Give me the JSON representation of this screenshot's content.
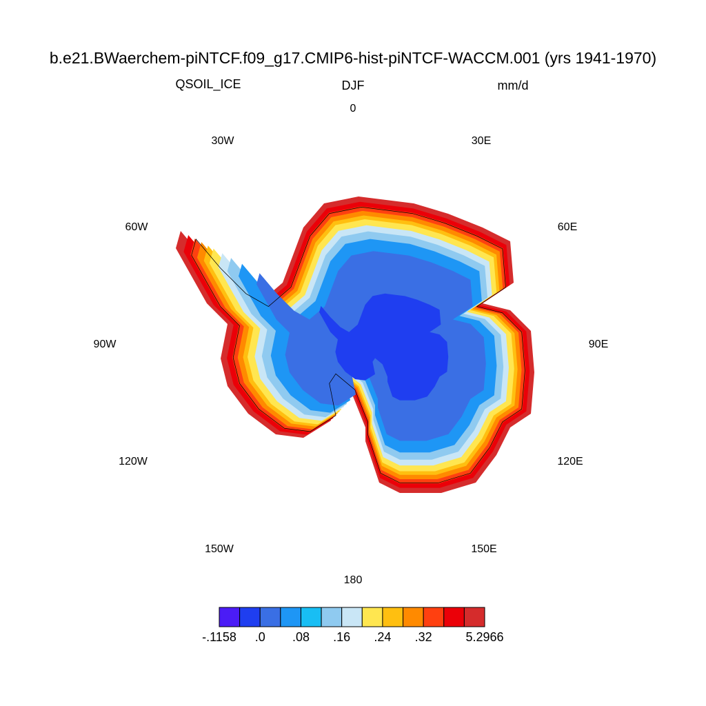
{
  "title": "b.e21.BWaerchem-piNTCF.f09_g17.CMIP6-hist-piNTCF-WACCM.001 (yrs 1941-1970)",
  "subtitle_left": "QSOIL_ICE",
  "subtitle_center": "DJF",
  "subtitle_right": "mm/d",
  "longitude_labels": [
    "0",
    "30W",
    "30E",
    "60W",
    "60E",
    "90W",
    "90E",
    "120W",
    "120E",
    "150W",
    "150E",
    "180"
  ],
  "colorbar": {
    "colors": [
      "#4b1cf6",
      "#1f3ef0",
      "#3a6fe4",
      "#1e96f5",
      "#18bef4",
      "#8fcaf0",
      "#c9e6f6",
      "#ffe650",
      "#ffbf10",
      "#ff8a00",
      "#ff4010",
      "#eb0008",
      "#d52c2c"
    ],
    "labels": [
      {
        "value": -0.1158,
        "label": "-.1158"
      },
      {
        "value": 0,
        "label": ".0"
      },
      {
        "value": 0.08,
        "label": ".08"
      },
      {
        "value": 0.16,
        "label": ".16"
      },
      {
        "value": 0.24,
        "label": ".24"
      },
      {
        "value": 0.32,
        "label": ".32"
      },
      {
        "value": 5.2966,
        "label": "5.2966"
      }
    ]
  }
}
